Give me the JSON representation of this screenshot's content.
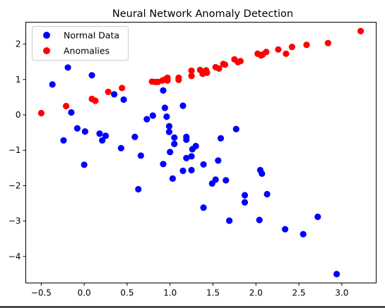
{
  "chart_data": {
    "type": "scatter",
    "title": "Neural Network Anomaly Detection",
    "xlabel": "",
    "ylabel": "",
    "xlim": [
      -0.68,
      3.4
    ],
    "ylim": [
      -4.75,
      2.62
    ],
    "xticks": [
      -0.5,
      0.0,
      0.5,
      1.0,
      1.5,
      2.0,
      2.5,
      3.0
    ],
    "xtick_labels": [
      "−0.5",
      "0.0",
      "0.5",
      "1.0",
      "1.5",
      "2.0",
      "2.5",
      "3.0"
    ],
    "yticks": [
      -4,
      -3,
      -2,
      -1,
      0,
      1,
      2
    ],
    "ytick_labels": [
      "−4",
      "−3",
      "−2",
      "−1",
      "0",
      "1",
      "2"
    ],
    "legend_position": "top-left",
    "grid": false,
    "series": [
      {
        "name": "Normal Data",
        "color": "#0000ff",
        "points": [
          [
            -0.37,
            0.86
          ],
          [
            -0.19,
            1.34
          ],
          [
            -0.24,
            -0.72
          ],
          [
            -0.15,
            0.07
          ],
          [
            -0.08,
            -0.38
          ],
          [
            0.01,
            -0.47
          ],
          [
            0.0,
            -1.41
          ],
          [
            0.09,
            1.12
          ],
          [
            0.18,
            -0.53
          ],
          [
            0.21,
            -0.72
          ],
          [
            0.25,
            -0.59
          ],
          [
            0.35,
            0.58
          ],
          [
            0.43,
            -0.94
          ],
          [
            0.46,
            0.43
          ],
          [
            0.59,
            -0.62
          ],
          [
            0.63,
            -2.1
          ],
          [
            0.66,
            -1.15
          ],
          [
            0.73,
            -0.12
          ],
          [
            0.8,
            -0.02
          ],
          [
            0.92,
            0.69
          ],
          [
            0.92,
            -1.39
          ],
          [
            0.94,
            0.2
          ],
          [
            0.96,
            -0.05
          ],
          [
            0.99,
            -0.48
          ],
          [
            0.99,
            -0.32
          ],
          [
            1.0,
            -1.05
          ],
          [
            1.03,
            -1.8
          ],
          [
            1.05,
            -0.82
          ],
          [
            1.05,
            -0.64
          ],
          [
            1.15,
            -1.58
          ],
          [
            1.15,
            0.26
          ],
          [
            1.19,
            -0.62
          ],
          [
            1.19,
            -0.7
          ],
          [
            1.19,
            -1.22
          ],
          [
            1.25,
            -1.17
          ],
          [
            1.25,
            -1.56
          ],
          [
            1.26,
            -0.97
          ],
          [
            1.3,
            -0.88
          ],
          [
            1.39,
            -2.62
          ],
          [
            1.39,
            -1.4
          ],
          [
            1.49,
            -1.94
          ],
          [
            1.53,
            -1.83
          ],
          [
            1.56,
            -1.29
          ],
          [
            1.59,
            -0.66
          ],
          [
            1.65,
            -1.85
          ],
          [
            1.69,
            -2.99
          ],
          [
            1.77,
            -0.4
          ],
          [
            1.87,
            -2.27
          ],
          [
            1.87,
            -2.47
          ],
          [
            2.04,
            -2.97
          ],
          [
            2.05,
            -1.56
          ],
          [
            2.07,
            -1.66
          ],
          [
            2.13,
            -2.24
          ],
          [
            2.34,
            -3.23
          ],
          [
            2.55,
            -3.37
          ],
          [
            2.72,
            -2.88
          ],
          [
            2.94,
            -4.5
          ]
        ]
      },
      {
        "name": "Anomalies",
        "color": "#ff0000",
        "points": [
          [
            -0.5,
            0.05
          ],
          [
            -0.21,
            0.25
          ],
          [
            0.09,
            0.45
          ],
          [
            0.13,
            0.4
          ],
          [
            0.28,
            0.65
          ],
          [
            0.44,
            0.76
          ],
          [
            0.79,
            0.94
          ],
          [
            0.83,
            0.93
          ],
          [
            0.86,
            0.93
          ],
          [
            0.91,
            0.97
          ],
          [
            0.94,
            1.0
          ],
          [
            0.97,
            1.05
          ],
          [
            0.97,
            0.97
          ],
          [
            1.1,
            1.05
          ],
          [
            1.1,
            0.99
          ],
          [
            1.25,
            1.25
          ],
          [
            1.25,
            1.1
          ],
          [
            1.35,
            1.27
          ],
          [
            1.38,
            1.16
          ],
          [
            1.42,
            1.26
          ],
          [
            1.43,
            1.19
          ],
          [
            1.53,
            1.35
          ],
          [
            1.57,
            1.31
          ],
          [
            1.62,
            1.44
          ],
          [
            1.64,
            1.42
          ],
          [
            1.75,
            1.57
          ],
          [
            1.79,
            1.49
          ],
          [
            1.82,
            1.52
          ],
          [
            2.02,
            1.73
          ],
          [
            2.06,
            1.68
          ],
          [
            2.08,
            1.71
          ],
          [
            2.12,
            1.78
          ],
          [
            2.26,
            1.85
          ],
          [
            2.35,
            1.73
          ],
          [
            2.42,
            1.92
          ],
          [
            2.59,
            1.98
          ],
          [
            2.84,
            2.03
          ],
          [
            3.22,
            2.37
          ]
        ]
      }
    ]
  }
}
